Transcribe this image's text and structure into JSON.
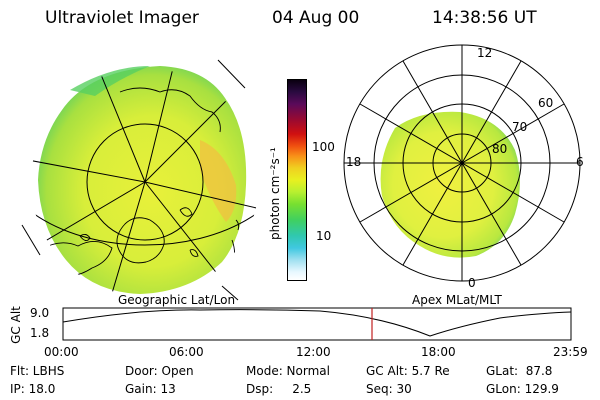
{
  "header": {
    "title": "Ultraviolet Imager",
    "date": "04 Aug 00",
    "time": "14:38:56 UT"
  },
  "colorbar": {
    "label": "photon cm⁻²s⁻¹",
    "ticks": [
      "100",
      "10"
    ]
  },
  "geo_panel": {
    "label": "Geographic Lat/Lon"
  },
  "polar_panel": {
    "label": "Apex MLat/MLT",
    "lat_labels": [
      "60",
      "70",
      "80"
    ],
    "mlt_labels": [
      "12",
      "18",
      "6",
      "0"
    ]
  },
  "timeline": {
    "ylabel": "GC Alt",
    "y_ticks": [
      "9.0",
      "1.8"
    ],
    "x_ticks": [
      "00:00",
      "06:00",
      "12:00",
      "18:00",
      "23:59"
    ]
  },
  "status": {
    "row1": {
      "filter": "Flt: LBHS",
      "door": "Door: Open",
      "mode": "Mode: Normal",
      "gcalt": "GC Alt: 5.7 Re",
      "glat": "GLat:  87.8"
    },
    "row2": {
      "ip": "IP: 18.0",
      "gain": "Gain: 13",
      "dsp": "Dsp:     2.5",
      "seq": "Seq: 30",
      "glon": "GLon: 129.9"
    }
  },
  "colors": {
    "image_base": "#d8ee3a",
    "image_green": "#60d060",
    "image_orange": "#f0c040",
    "cursor_line": "#c02020"
  }
}
